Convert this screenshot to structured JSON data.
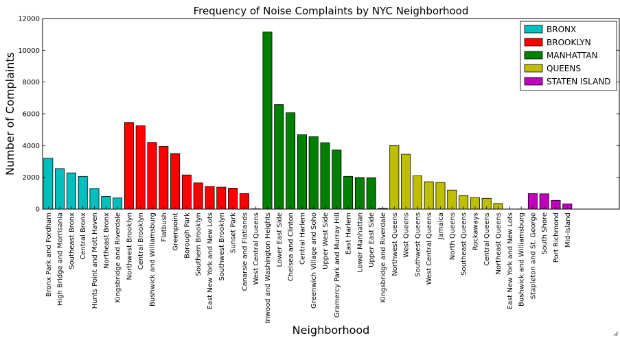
{
  "chart_data": {
    "type": "bar",
    "title": "Frequency of Noise Complaints by NYC Neighborhood",
    "xlabel": "Neighborhood",
    "ylabel": "Number of Complaints",
    "ylim": [
      0,
      12000
    ],
    "yticks": [
      0,
      2000,
      4000,
      6000,
      8000,
      10000,
      12000
    ],
    "grid": false,
    "legend_position": "top-right",
    "categories": [
      "Bronx Park and Fordham",
      "High Bridge and Morrisania",
      "Southeast Bronx",
      "Central Bronx",
      "Hunts Point and Mott Haven",
      "Northeast Bronx",
      "Kingsbridge and Riverdale",
      "Northwest Brooklyn",
      "Central Brooklyn",
      "Bushwick and Williamsburg",
      "Flatbush",
      "Greenpoint",
      "Borough Park",
      "Southern Brooklyn",
      "East New York and New Lots",
      "Southwest Brooklyn",
      "Sunset Park",
      "Canarsie and Flatlands",
      "West Central Queens",
      "Inwood and Washington Heights",
      "Lower East Side",
      "Chelsea and Clinton",
      "Central Harlem",
      "Greenwich Village and Soho",
      "Upper West Side",
      "Gramercy Park and Murray Hill",
      "East Harlem",
      "Lower Manhattan",
      "Upper East Side",
      "Kingsbridge and Riverdale",
      "Northwest Queens",
      "West Queens",
      "Southwest Queens",
      "West Central Queens",
      "Jamaica",
      "North Queens",
      "Southeast Queens",
      "Rockaways",
      "Central Queens",
      "Northeast Queens",
      "East New York and New Lots",
      "Bushwick and Williamsburg",
      "Stapleton and St. George",
      "South Shore",
      "Port Richmond",
      "Mid-Island"
    ],
    "values": [
      3200,
      2550,
      2280,
      2060,
      1300,
      800,
      700,
      5450,
      5250,
      4200,
      3950,
      3500,
      2150,
      1650,
      1430,
      1380,
      1320,
      980,
      20,
      11150,
      6580,
      6070,
      4680,
      4560,
      4180,
      3720,
      2060,
      1990,
      1980,
      50,
      4000,
      3450,
      2100,
      1720,
      1680,
      1200,
      850,
      720,
      680,
      350,
      8,
      8,
      980,
      960,
      550,
      330
    ],
    "borough_index": [
      0,
      0,
      0,
      0,
      0,
      0,
      0,
      1,
      1,
      1,
      1,
      1,
      1,
      1,
      1,
      1,
      1,
      1,
      1,
      2,
      2,
      2,
      2,
      2,
      2,
      2,
      2,
      2,
      2,
      2,
      3,
      3,
      3,
      3,
      3,
      3,
      3,
      3,
      3,
      3,
      3,
      3,
      4,
      4,
      4,
      4
    ],
    "series": [
      {
        "name": "BRONX",
        "color": "#00bfbf"
      },
      {
        "name": "BROOKLYN",
        "color": "#ff0000"
      },
      {
        "name": "MANHATTAN",
        "color": "#008000"
      },
      {
        "name": "QUEENS",
        "color": "#bfbf00"
      },
      {
        "name": "STATEN ISLAND",
        "color": "#bf00bf"
      }
    ]
  }
}
